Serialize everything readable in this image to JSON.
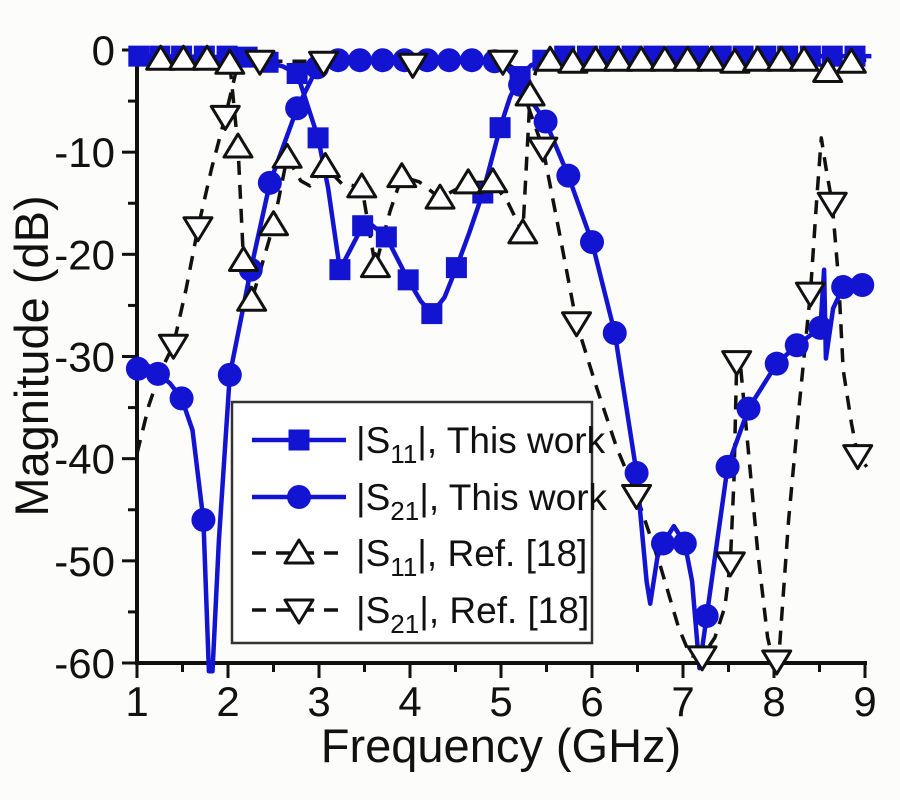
{
  "figure": {
    "background": "#fcfcfa",
    "axis_color": "#111111",
    "x_axis": {
      "label": "Frequency (GHz)",
      "min": 1,
      "max": 9,
      "major_ticks": [
        1,
        2,
        3,
        4,
        5,
        6,
        7,
        8,
        9
      ],
      "minor_ticks": [
        1.5,
        2.5,
        3.5,
        4.5,
        5.5,
        6.5,
        7.5,
        8.5
      ]
    },
    "y_axis": {
      "label": "Magnitude (dB)",
      "min": -60,
      "max": 0,
      "major_ticks": [
        0,
        -10,
        -20,
        -30,
        -40,
        -50,
        -60
      ],
      "minor_ticks": [
        -5,
        -15,
        -25,
        -35,
        -45,
        -55
      ]
    },
    "legend": {
      "border_color": "#333333",
      "fill": "#ffffff",
      "entries": [
        {
          "series": "s11_this",
          "marker_icon": "square-filled-icon",
          "color": "#1313d2",
          "line": "solid",
          "label_pre": "|S",
          "label_sub": "11",
          "label_post": "|, This work"
        },
        {
          "series": "s21_this",
          "marker_icon": "circle-filled-icon",
          "color": "#1313d2",
          "line": "solid",
          "label_pre": "|S",
          "label_sub": "21",
          "label_post": "|, This work"
        },
        {
          "series": "s11_ref",
          "marker_icon": "triangle-up-open-icon",
          "color": "#111111",
          "line": "dashed",
          "label_pre": "|S",
          "label_sub": "11",
          "label_post": "|, Ref. [18]"
        },
        {
          "series": "s21_ref",
          "marker_icon": "triangle-down-open-icon",
          "color": "#111111",
          "line": "dashed",
          "label_pre": "|S",
          "label_sub": "21",
          "label_post": "|, Ref. [18]"
        }
      ]
    }
  },
  "chart_data": {
    "type": "line",
    "title": "",
    "xlabel": "Frequency (GHz)",
    "ylabel": "Magnitude (dB)",
    "xlim": [
      1,
      9
    ],
    "ylim": [
      -60,
      0
    ],
    "grid": false,
    "legend_position": "lower-center-left",
    "series": [
      {
        "name": "|S11|, This work",
        "color": "#1313d2",
        "line_style": "solid",
        "marker": "square-filled",
        "marker_points": [
          [
            1.02,
            -0.6
          ],
          [
            1.25,
            -0.6
          ],
          [
            1.49,
            -0.6
          ],
          [
            1.74,
            -0.6
          ],
          [
            1.99,
            -0.6
          ],
          [
            2.21,
            -0.7
          ],
          [
            2.44,
            -1.2
          ],
          [
            2.76,
            -2.3
          ],
          [
            2.99,
            -8.6
          ],
          [
            3.23,
            -21.5
          ],
          [
            3.48,
            -17.2
          ],
          [
            3.74,
            -18.3
          ],
          [
            3.98,
            -22.5
          ],
          [
            4.24,
            -25.8
          ],
          [
            4.51,
            -21.3
          ],
          [
            4.8,
            -14.0
          ],
          [
            4.99,
            -7.6
          ],
          [
            5.21,
            -2.6
          ],
          [
            5.46,
            -1.0
          ],
          [
            5.7,
            -0.6
          ],
          [
            5.95,
            -0.6
          ],
          [
            6.19,
            -0.6
          ],
          [
            6.44,
            -0.6
          ],
          [
            6.68,
            -0.6
          ],
          [
            6.93,
            -0.6
          ],
          [
            7.17,
            -0.6
          ],
          [
            7.42,
            -0.6
          ],
          [
            7.66,
            -0.6
          ],
          [
            7.91,
            -0.6
          ],
          [
            8.15,
            -0.6
          ],
          [
            8.4,
            -0.6
          ],
          [
            8.64,
            -0.6
          ],
          [
            8.89,
            -0.6
          ]
        ],
        "line_points": [
          [
            1.0,
            -0.6
          ],
          [
            2.21,
            -0.7
          ],
          [
            2.44,
            -1.2
          ],
          [
            2.6,
            -1.6
          ],
          [
            2.76,
            -2.3
          ],
          [
            2.99,
            -8.6
          ],
          [
            3.1,
            -13.5
          ],
          [
            3.23,
            -21.5
          ],
          [
            3.48,
            -17.2
          ],
          [
            3.55,
            -16.9
          ],
          [
            3.74,
            -18.3
          ],
          [
            3.98,
            -22.5
          ],
          [
            4.12,
            -24.6
          ],
          [
            4.24,
            -25.8
          ],
          [
            4.38,
            -24.2
          ],
          [
            4.51,
            -21.3
          ],
          [
            4.65,
            -17.9
          ],
          [
            4.8,
            -14.0
          ],
          [
            4.99,
            -7.6
          ],
          [
            5.1,
            -4.6
          ],
          [
            5.21,
            -2.6
          ],
          [
            5.33,
            -1.5
          ],
          [
            5.46,
            -1.0
          ],
          [
            5.6,
            -0.6
          ],
          [
            9.07,
            -0.6
          ]
        ]
      },
      {
        "name": "|S21|, This work",
        "color": "#1313d2",
        "line_style": "solid",
        "marker": "circle-filled",
        "marker_points": [
          [
            1.01,
            -31.2
          ],
          [
            1.23,
            -31.7
          ],
          [
            1.49,
            -34.1
          ],
          [
            1.73,
            -46.0
          ],
          [
            2.02,
            -31.8
          ],
          [
            2.25,
            -21.5
          ],
          [
            2.46,
            -13.0
          ],
          [
            2.76,
            -5.7
          ],
          [
            2.98,
            -1.7
          ],
          [
            3.21,
            -1.0
          ],
          [
            3.45,
            -1.0
          ],
          [
            3.7,
            -1.0
          ],
          [
            3.94,
            -1.0
          ],
          [
            4.19,
            -1.0
          ],
          [
            4.43,
            -1.0
          ],
          [
            4.68,
            -1.0
          ],
          [
            4.93,
            -1.1
          ],
          [
            5.21,
            -3.4
          ],
          [
            5.49,
            -7.0
          ],
          [
            5.74,
            -12.3
          ],
          [
            6.0,
            -18.8
          ],
          [
            6.25,
            -27.7
          ],
          [
            6.49,
            -41.4
          ],
          [
            6.78,
            -48.3
          ],
          [
            7.02,
            -48.3
          ],
          [
            7.26,
            -55.4
          ],
          [
            7.49,
            -40.8
          ],
          [
            7.72,
            -35.1
          ],
          [
            8.03,
            -30.7
          ],
          [
            8.25,
            -28.9
          ],
          [
            8.51,
            -27.2
          ],
          [
            8.76,
            -23.2
          ],
          [
            8.97,
            -23.0
          ]
        ],
        "line_points": [
          [
            1.0,
            -31.2
          ],
          [
            1.12,
            -30.9
          ],
          [
            1.23,
            -31.7
          ],
          [
            1.36,
            -32.6
          ],
          [
            1.49,
            -34.1
          ],
          [
            1.61,
            -37.2
          ],
          [
            1.73,
            -46.0
          ],
          [
            1.79,
            -60.8
          ],
          [
            1.83,
            -60.8
          ],
          [
            1.9,
            -48.0
          ],
          [
            2.02,
            -31.8
          ],
          [
            2.25,
            -21.5
          ],
          [
            2.46,
            -13.0
          ],
          [
            2.76,
            -5.7
          ],
          [
            2.98,
            -1.7
          ],
          [
            3.1,
            -1.0
          ],
          [
            4.93,
            -1.1
          ],
          [
            5.08,
            -1.9
          ],
          [
            5.21,
            -3.4
          ],
          [
            5.49,
            -7.0
          ],
          [
            5.74,
            -12.3
          ],
          [
            6.0,
            -18.8
          ],
          [
            6.25,
            -27.7
          ],
          [
            6.49,
            -41.4
          ],
          [
            6.6,
            -52.0
          ],
          [
            6.64,
            -54.2
          ],
          [
            6.72,
            -49.6
          ],
          [
            6.78,
            -48.3
          ],
          [
            6.9,
            -46.6
          ],
          [
            7.02,
            -48.3
          ],
          [
            7.1,
            -52.0
          ],
          [
            7.18,
            -60.5
          ],
          [
            7.26,
            -55.4
          ],
          [
            7.49,
            -40.8
          ],
          [
            7.72,
            -35.1
          ],
          [
            8.03,
            -30.7
          ],
          [
            8.25,
            -28.9
          ],
          [
            8.51,
            -27.2
          ],
          [
            8.55,
            -21.5
          ],
          [
            8.57,
            -30.2
          ],
          [
            8.65,
            -25.3
          ],
          [
            8.76,
            -23.2
          ],
          [
            8.97,
            -23.0
          ],
          [
            9.08,
            -22.9
          ]
        ]
      },
      {
        "name": "|S11|, Ref. [18]",
        "color": "#111111",
        "line_style": "dashed",
        "marker": "triangle-up-open",
        "marker_points": [
          [
            1.26,
            -0.9
          ],
          [
            1.51,
            -0.9
          ],
          [
            1.77,
            -0.9
          ],
          [
            2.02,
            -1.3
          ],
          [
            2.11,
            -9.5
          ],
          [
            2.17,
            -20.6
          ],
          [
            2.26,
            -24.5
          ],
          [
            2.5,
            -17.1
          ],
          [
            2.65,
            -10.5
          ],
          [
            3.07,
            -11.4
          ],
          [
            3.47,
            -13.4
          ],
          [
            3.62,
            -21.2
          ],
          [
            3.91,
            -12.4
          ],
          [
            4.33,
            -14.5
          ],
          [
            4.64,
            -13.0
          ],
          [
            4.91,
            -12.9
          ],
          [
            5.24,
            -17.9
          ],
          [
            5.32,
            -4.4
          ],
          [
            5.54,
            -1.0
          ],
          [
            5.79,
            -1.2
          ],
          [
            6.04,
            -1.0
          ],
          [
            6.29,
            -1.0
          ],
          [
            6.54,
            -1.0
          ],
          [
            6.8,
            -1.0
          ],
          [
            7.05,
            -1.0
          ],
          [
            7.31,
            -1.0
          ],
          [
            7.57,
            -1.2
          ],
          [
            7.82,
            -1.0
          ],
          [
            8.08,
            -1.0
          ],
          [
            8.33,
            -1.0
          ],
          [
            8.59,
            -2.1
          ],
          [
            8.85,
            -1.2
          ]
        ],
        "line_points": [
          [
            1.0,
            -0.9
          ],
          [
            1.95,
            -0.9
          ],
          [
            2.02,
            -1.3
          ],
          [
            2.11,
            -9.5
          ],
          [
            2.17,
            -20.6
          ],
          [
            2.26,
            -24.5
          ],
          [
            2.38,
            -20.8
          ],
          [
            2.5,
            -17.1
          ],
          [
            2.65,
            -10.5
          ],
          [
            2.8,
            -12.8
          ],
          [
            2.9,
            -13.3
          ],
          [
            3.07,
            -11.4
          ],
          [
            3.25,
            -13.1
          ],
          [
            3.47,
            -13.4
          ],
          [
            3.62,
            -21.2
          ],
          [
            3.78,
            -15.8
          ],
          [
            3.91,
            -12.4
          ],
          [
            4.1,
            -12.9
          ],
          [
            4.33,
            -14.5
          ],
          [
            4.64,
            -13.0
          ],
          [
            4.91,
            -12.9
          ],
          [
            5.08,
            -15.0
          ],
          [
            5.24,
            -17.9
          ],
          [
            5.32,
            -4.4
          ],
          [
            5.4,
            -1.4
          ],
          [
            5.54,
            -1.0
          ],
          [
            7.45,
            -1.0
          ],
          [
            7.57,
            -1.2
          ],
          [
            7.7,
            -1.0
          ],
          [
            8.45,
            -1.0
          ],
          [
            8.59,
            -2.1
          ],
          [
            8.72,
            -1.0
          ],
          [
            9.07,
            -1.0
          ]
        ]
      },
      {
        "name": "|S21|, Ref. [18]",
        "color": "#111111",
        "line_style": "dashed",
        "marker": "triangle-down-open",
        "marker_points": [
          [
            1.4,
            -28.9
          ],
          [
            1.67,
            -17.4
          ],
          [
            1.97,
            -6.5
          ],
          [
            2.35,
            -1.1
          ],
          [
            3.05,
            -1.2
          ],
          [
            4.03,
            -1.4
          ],
          [
            5.02,
            -1.1
          ],
          [
            5.46,
            -9.6
          ],
          [
            5.83,
            -26.7
          ],
          [
            6.49,
            -43.6
          ],
          [
            7.21,
            -59.4
          ],
          [
            7.52,
            -50.2
          ],
          [
            7.59,
            -30.5
          ],
          [
            8.03,
            -59.8
          ],
          [
            8.4,
            -23.8
          ],
          [
            8.64,
            -15.0
          ],
          [
            8.92,
            -39.7
          ]
        ],
        "line_points": [
          [
            1.0,
            -39.5
          ],
          [
            1.13,
            -34.8
          ],
          [
            1.26,
            -31.4
          ],
          [
            1.4,
            -28.9
          ],
          [
            1.54,
            -23.4
          ],
          [
            1.67,
            -17.4
          ],
          [
            1.82,
            -11.6
          ],
          [
            1.97,
            -6.5
          ],
          [
            2.08,
            -2.4
          ],
          [
            2.2,
            -1.1
          ],
          [
            5.02,
            -1.1
          ],
          [
            5.15,
            -1.8
          ],
          [
            5.46,
            -9.6
          ],
          [
            5.65,
            -18.3
          ],
          [
            5.83,
            -26.7
          ],
          [
            6.05,
            -33.0
          ],
          [
            6.27,
            -38.9
          ],
          [
            6.49,
            -43.6
          ],
          [
            6.75,
            -50.5
          ],
          [
            6.95,
            -56.5
          ],
          [
            7.08,
            -59.3
          ],
          [
            7.21,
            -59.4
          ],
          [
            7.35,
            -57.5
          ],
          [
            7.46,
            -54.5
          ],
          [
            7.52,
            -50.2
          ],
          [
            7.56,
            -42.0
          ],
          [
            7.59,
            -30.5
          ],
          [
            7.62,
            -29.7
          ],
          [
            7.7,
            -37.5
          ],
          [
            7.82,
            -49.0
          ],
          [
            7.93,
            -57.5
          ],
          [
            7.99,
            -59.8
          ],
          [
            8.06,
            -58.5
          ],
          [
            8.16,
            -46.0
          ],
          [
            8.28,
            -34.5
          ],
          [
            8.4,
            -23.8
          ],
          [
            8.47,
            -14.5
          ],
          [
            8.52,
            -8.6
          ],
          [
            8.57,
            -11.5
          ],
          [
            8.64,
            -15.0
          ],
          [
            8.71,
            -22.5
          ],
          [
            8.76,
            -31.3
          ],
          [
            8.85,
            -36.5
          ],
          [
            8.92,
            -39.7
          ],
          [
            9.02,
            -40.8
          ]
        ]
      }
    ]
  }
}
